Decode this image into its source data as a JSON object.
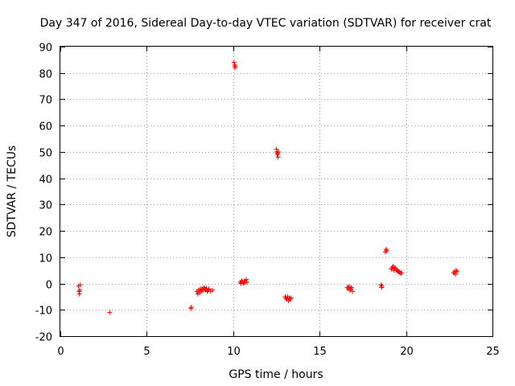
{
  "chart_data": {
    "type": "scatter",
    "title": "Day 347 of 2016, Sidereal Day-to-day VTEC variation (SDTVAR) for receiver crat",
    "xlabel": "GPS time / hours",
    "ylabel": "SDTVAR / TECUs",
    "xlim": [
      0,
      25
    ],
    "ylim": [
      -20,
      90
    ],
    "xticks": [
      0,
      5,
      10,
      15,
      20,
      25
    ],
    "yticks": [
      -20,
      -10,
      0,
      10,
      20,
      30,
      40,
      50,
      60,
      70,
      80,
      90
    ],
    "grid": true,
    "marker": "+",
    "color": "#ff0000",
    "series": [
      {
        "name": "SDTVAR",
        "x": [
          1.05,
          1.08,
          1.1,
          1.12,
          1.15,
          2.85,
          7.55,
          7.58,
          7.9,
          7.95,
          8.0,
          8.05,
          8.1,
          8.15,
          8.2,
          8.25,
          8.3,
          8.35,
          8.4,
          8.45,
          8.5,
          8.55,
          8.6,
          8.7,
          8.8,
          10.05,
          10.08,
          10.1,
          10.12,
          10.4,
          10.45,
          10.5,
          10.55,
          10.6,
          10.65,
          10.7,
          10.75,
          10.8,
          12.5,
          12.52,
          12.55,
          12.57,
          12.6,
          12.62,
          13.0,
          13.05,
          13.1,
          13.15,
          13.2,
          13.25,
          13.3,
          13.35,
          16.6,
          16.65,
          16.7,
          16.75,
          16.8,
          16.85,
          16.9,
          18.55,
          18.58,
          18.6,
          18.8,
          18.85,
          18.88,
          19.15,
          19.2,
          19.25,
          19.3,
          19.35,
          19.4,
          19.45,
          19.5,
          19.55,
          19.6,
          19.65,
          19.7,
          19.75,
          22.75,
          22.8,
          22.85,
          22.9,
          22.95
        ],
        "y": [
          -1,
          -3,
          -4,
          -2.5,
          -0.5,
          -11,
          -9.5,
          -9,
          -3,
          -4,
          -2.5,
          -3.5,
          -2,
          -3,
          -2,
          -2.5,
          -1.5,
          -2,
          -2.5,
          -2,
          -3,
          -2.5,
          -2,
          -3,
          -2.5,
          84,
          83,
          82,
          82.5,
          0.5,
          0,
          1,
          0.5,
          0,
          1,
          0.5,
          1.5,
          0.5,
          51,
          50,
          49,
          49.5,
          48,
          50,
          -5,
          -5.5,
          -6,
          -5,
          -6.5,
          -5.5,
          -6,
          -5.5,
          -1.5,
          -2,
          -1,
          -2.5,
          -2,
          -1.5,
          -3,
          -0.5,
          -1.5,
          -1,
          12,
          13,
          12.5,
          5.5,
          6,
          6.5,
          5,
          6,
          5.5,
          5,
          5,
          4.5,
          4.5,
          4,
          4,
          4,
          4,
          4.5,
          3.5,
          5,
          4.5
        ]
      }
    ]
  }
}
